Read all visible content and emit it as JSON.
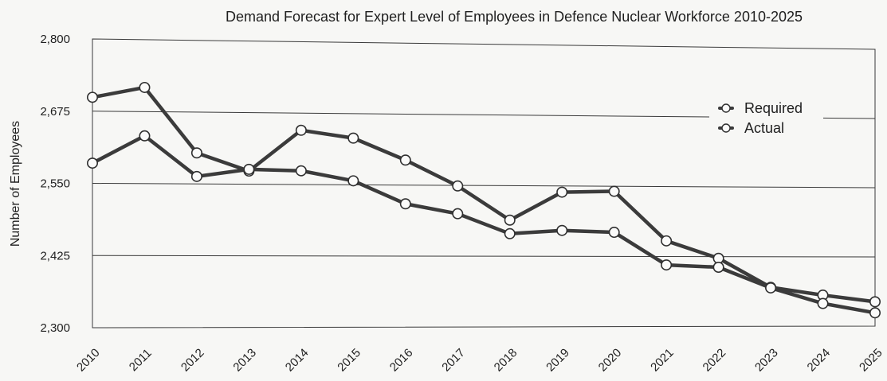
{
  "chart_data": {
    "type": "line",
    "title": "Demand Forecast for Expert Level of Employees in Defence Nuclear Workforce 2010-2025",
    "xlabel": "",
    "ylabel": "Number of Employees",
    "categories": [
      "2010",
      "2011",
      "2012",
      "2013",
      "2014",
      "2015",
      "2016",
      "2017",
      "2018",
      "2019",
      "2020",
      "2021",
      "2022",
      "2023",
      "2024",
      "2025"
    ],
    "ylim": [
      2300,
      2800
    ],
    "yticks": [
      2300,
      2425,
      2550,
      2675,
      2800
    ],
    "ytick_labels": [
      "2,300",
      "2,425",
      "2,550",
      "2,675",
      "2,800"
    ],
    "grid": true,
    "legend_position": "top-right",
    "series": [
      {
        "name": "Required",
        "values": [
          2699,
          2717,
          2604,
          2573,
          2645,
          2632,
          2594,
          2549,
          2489,
          2539,
          2541,
          2453,
          2422,
          2370,
          2356,
          2344
        ]
      },
      {
        "name": "Actual",
        "values": [
          2585,
          2633,
          2563,
          2576,
          2574,
          2557,
          2517,
          2500,
          2465,
          2471,
          2468,
          2410,
          2406,
          2369,
          2341,
          2324
        ]
      }
    ]
  }
}
